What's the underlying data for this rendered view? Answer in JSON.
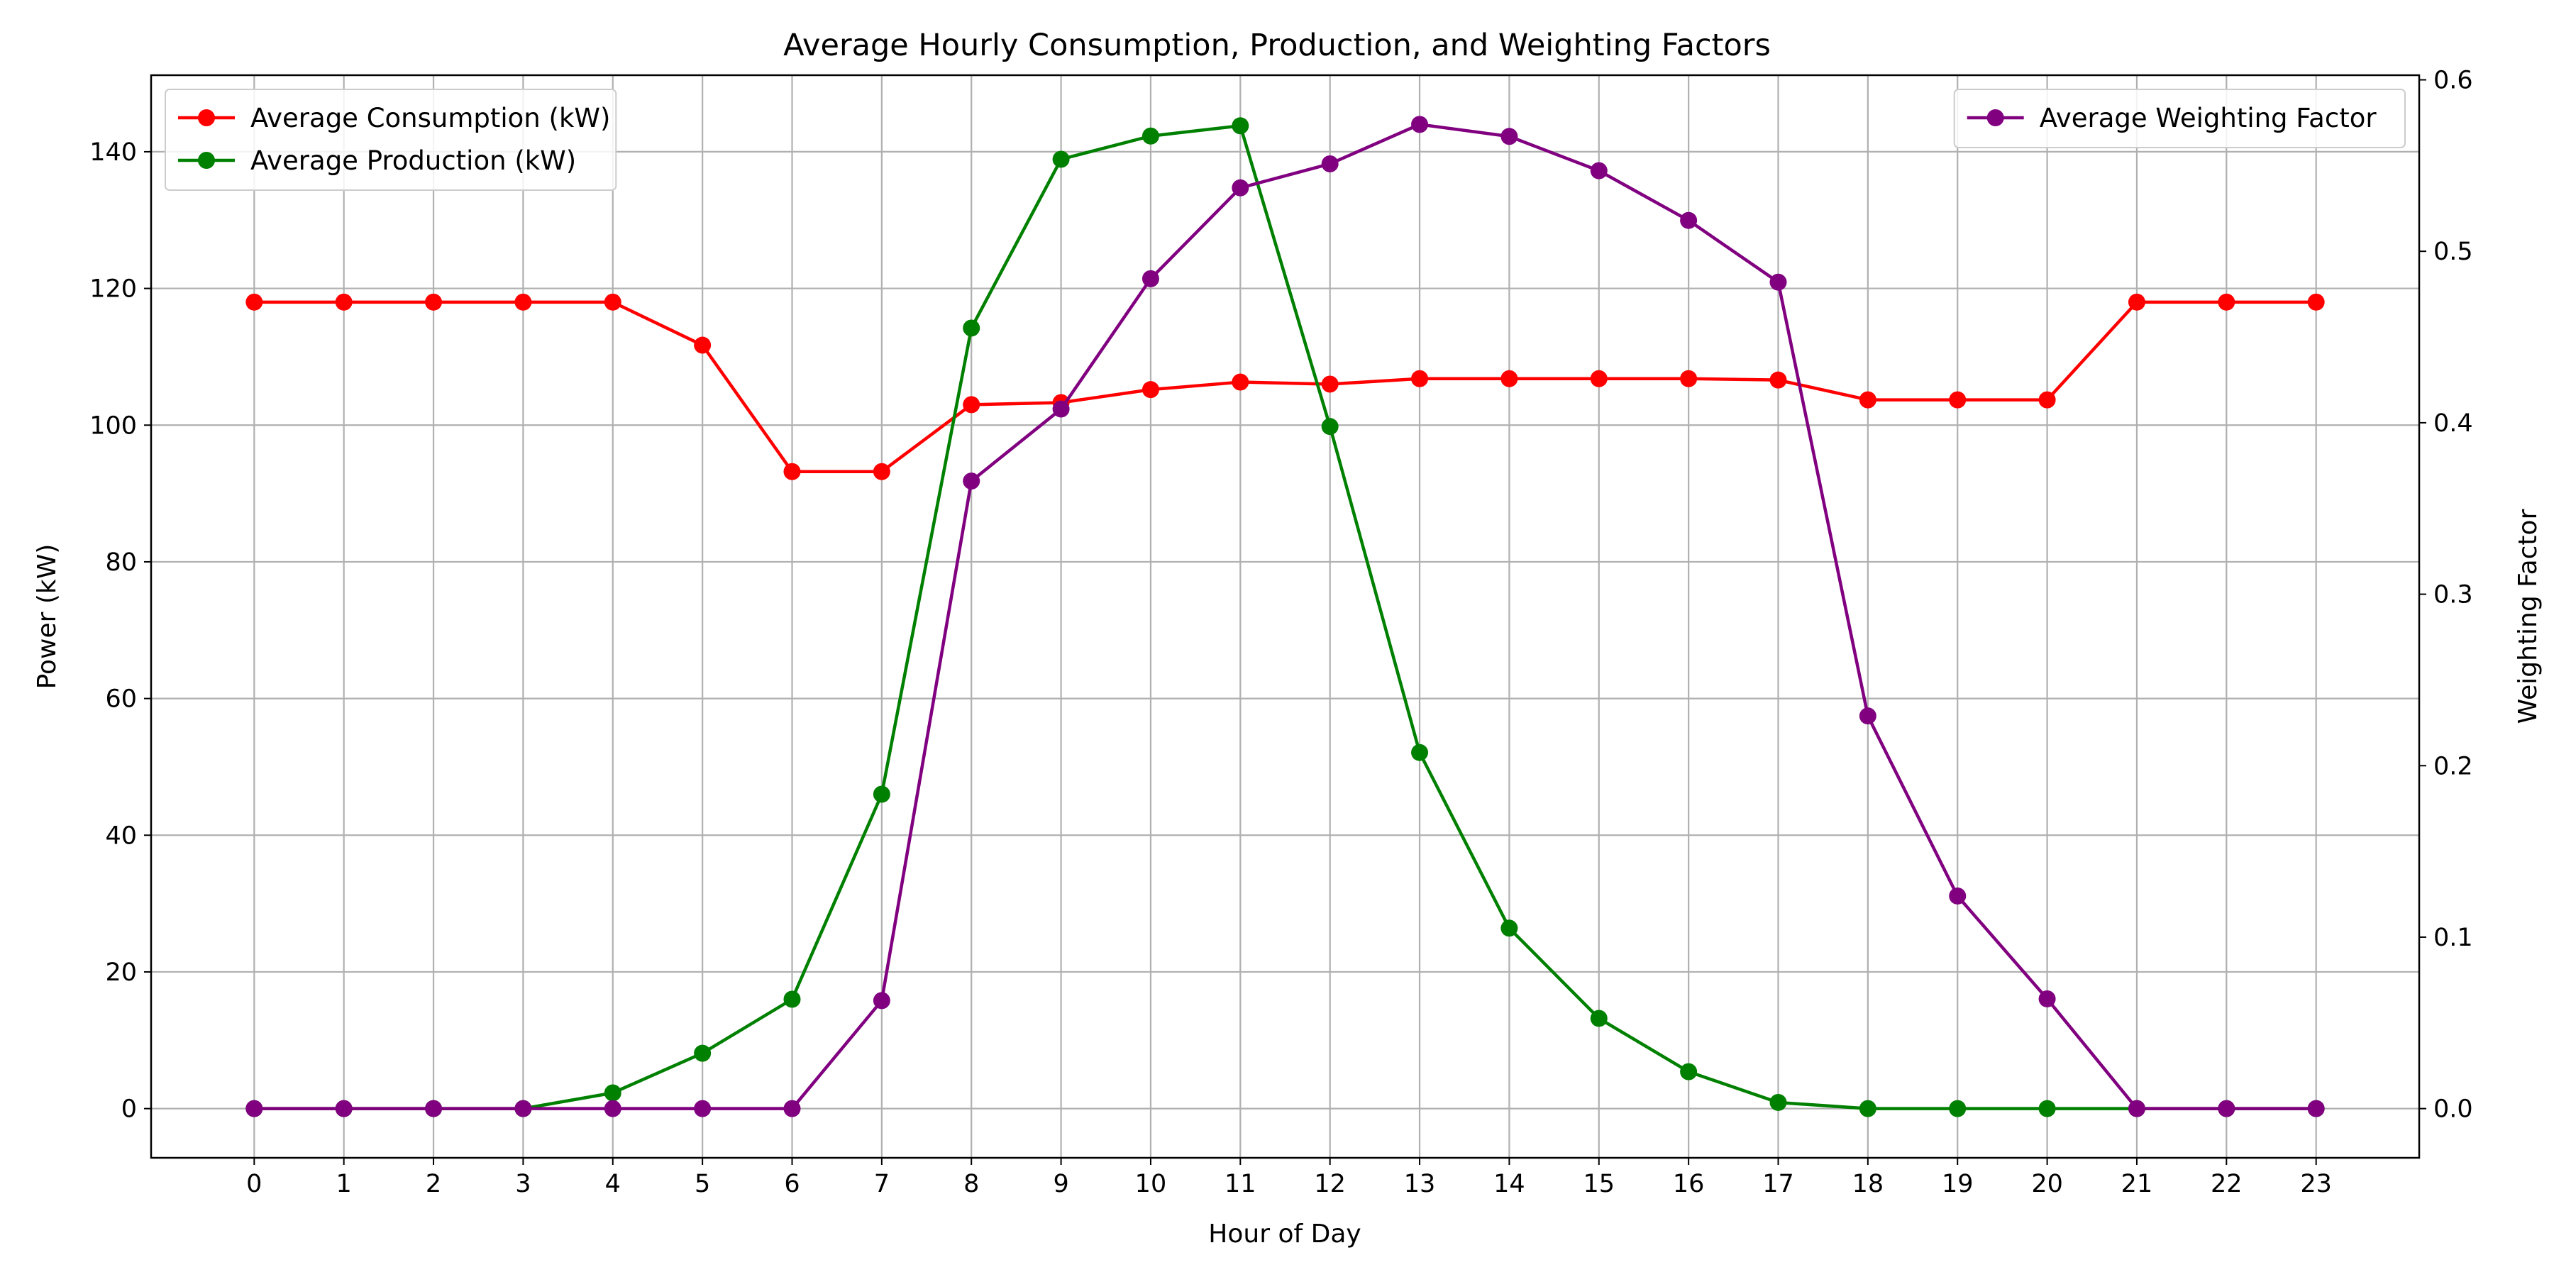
{
  "chart_data": {
    "type": "line",
    "title": "Average Hourly Consumption, Production, and Weighting Factors",
    "xlabel": "Hour of Day",
    "ylabel_left": "Power (kW)",
    "ylabel_right": "Weighting Factor",
    "x": [
      0,
      1,
      2,
      3,
      4,
      5,
      6,
      7,
      8,
      9,
      10,
      11,
      12,
      13,
      14,
      15,
      16,
      17,
      18,
      19,
      20,
      21,
      22,
      23
    ],
    "xlim": [
      -1.15,
      24.15
    ],
    "ylim_left": [
      -7.2,
      151.2
    ],
    "ylim_right": [
      -0.0287,
      0.6027
    ],
    "yticks_left": [
      0,
      20,
      40,
      60,
      80,
      100,
      120,
      140
    ],
    "yticks_right": [
      0.0,
      0.1,
      0.2,
      0.3,
      0.4,
      0.5,
      0.6
    ],
    "ytick_labels_right": [
      "0.0",
      "0.1",
      "0.2",
      "0.3",
      "0.4",
      "0.5",
      "0.6"
    ],
    "grid": true,
    "series": [
      {
        "name": "Average Consumption (kW)",
        "axis": "left",
        "color": "#ff0000",
        "values": [
          118,
          118,
          118,
          118,
          118,
          111.7,
          93.2,
          93.2,
          103,
          103.3,
          105.2,
          106.3,
          106,
          106.8,
          106.8,
          106.8,
          106.8,
          106.6,
          103.7,
          103.7,
          103.7,
          118,
          118,
          118
        ]
      },
      {
        "name": "Average Production (kW)",
        "axis": "left",
        "color": "#008000",
        "values": [
          0,
          0,
          0,
          0,
          2.3,
          8.1,
          16,
          46,
          114.2,
          138.9,
          142.3,
          143.8,
          99.8,
          52.1,
          26.4,
          13.2,
          5.4,
          0.9,
          0,
          0,
          0,
          0,
          0,
          0
        ]
      },
      {
        "name": "Average Weighting Factor",
        "axis": "right",
        "color": "#800080",
        "values": [
          0,
          0,
          0,
          0,
          0,
          0,
          0,
          0.063,
          0.366,
          0.408,
          0.484,
          0.537,
          0.551,
          0.574,
          0.567,
          0.547,
          0.518,
          0.482,
          0.229,
          0.124,
          0.064,
          0,
          0,
          0
        ]
      }
    ],
    "legends": [
      {
        "placement": "top-left",
        "series": [
          0,
          1
        ]
      },
      {
        "placement": "top-right",
        "series": [
          2
        ]
      }
    ]
  }
}
